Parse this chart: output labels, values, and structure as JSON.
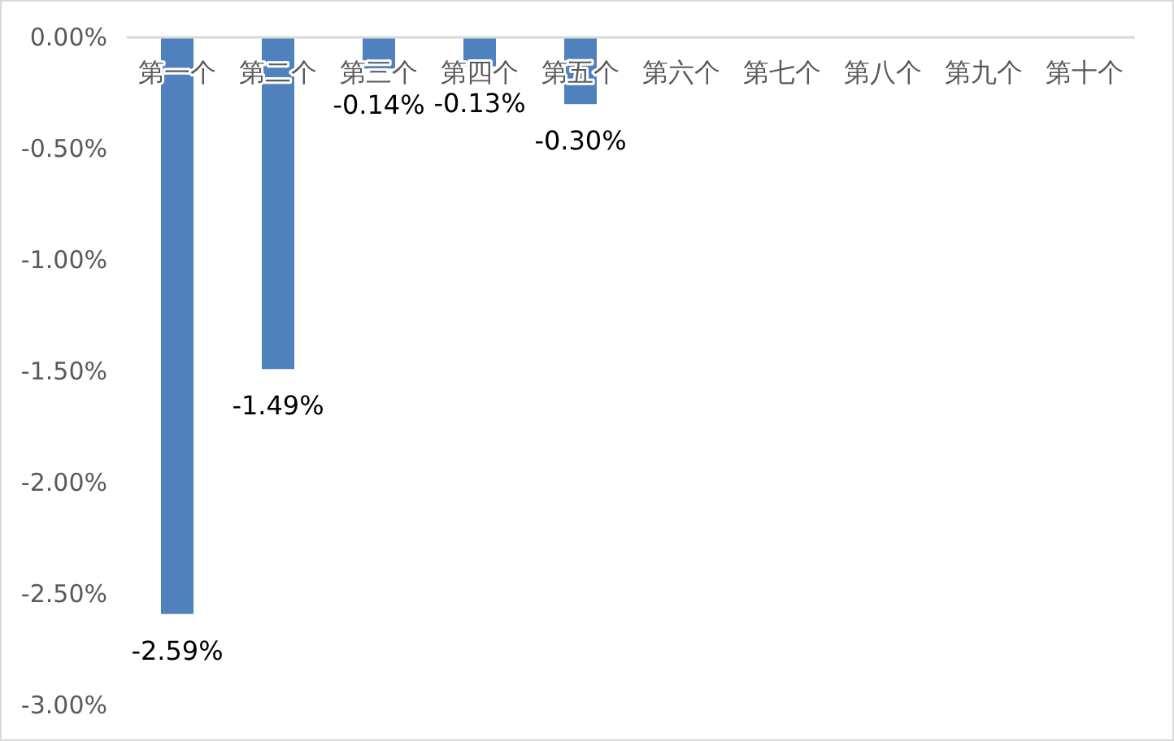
{
  "chart_data": {
    "type": "bar",
    "categories": [
      "第一个",
      "第二个",
      "第三个",
      "第四个",
      "第五个",
      "第六个",
      "第七个",
      "第八个",
      "第九个",
      "第十个"
    ],
    "values": [
      -2.59,
      -1.49,
      -0.14,
      -0.13,
      -0.3,
      null,
      null,
      null,
      null,
      null
    ],
    "value_labels": [
      "-2.59%",
      "-1.49%",
      "-0.14%",
      "-0.13%",
      "-0.30%",
      null,
      null,
      null,
      null,
      null
    ],
    "color": "#4f81bd",
    "ylim": [
      -3,
      0
    ],
    "yticks": [
      {
        "value": 0,
        "label": "0.00%"
      },
      {
        "value": -0.5,
        "label": "-0.50%"
      },
      {
        "value": -1,
        "label": "-1.00%"
      },
      {
        "value": -1.5,
        "label": "-1.50%"
      },
      {
        "value": -2,
        "label": "-2.00%"
      },
      {
        "value": -2.5,
        "label": "-2.50%"
      },
      {
        "value": -3,
        "label": "-3.00%"
      }
    ],
    "grid": false
  }
}
